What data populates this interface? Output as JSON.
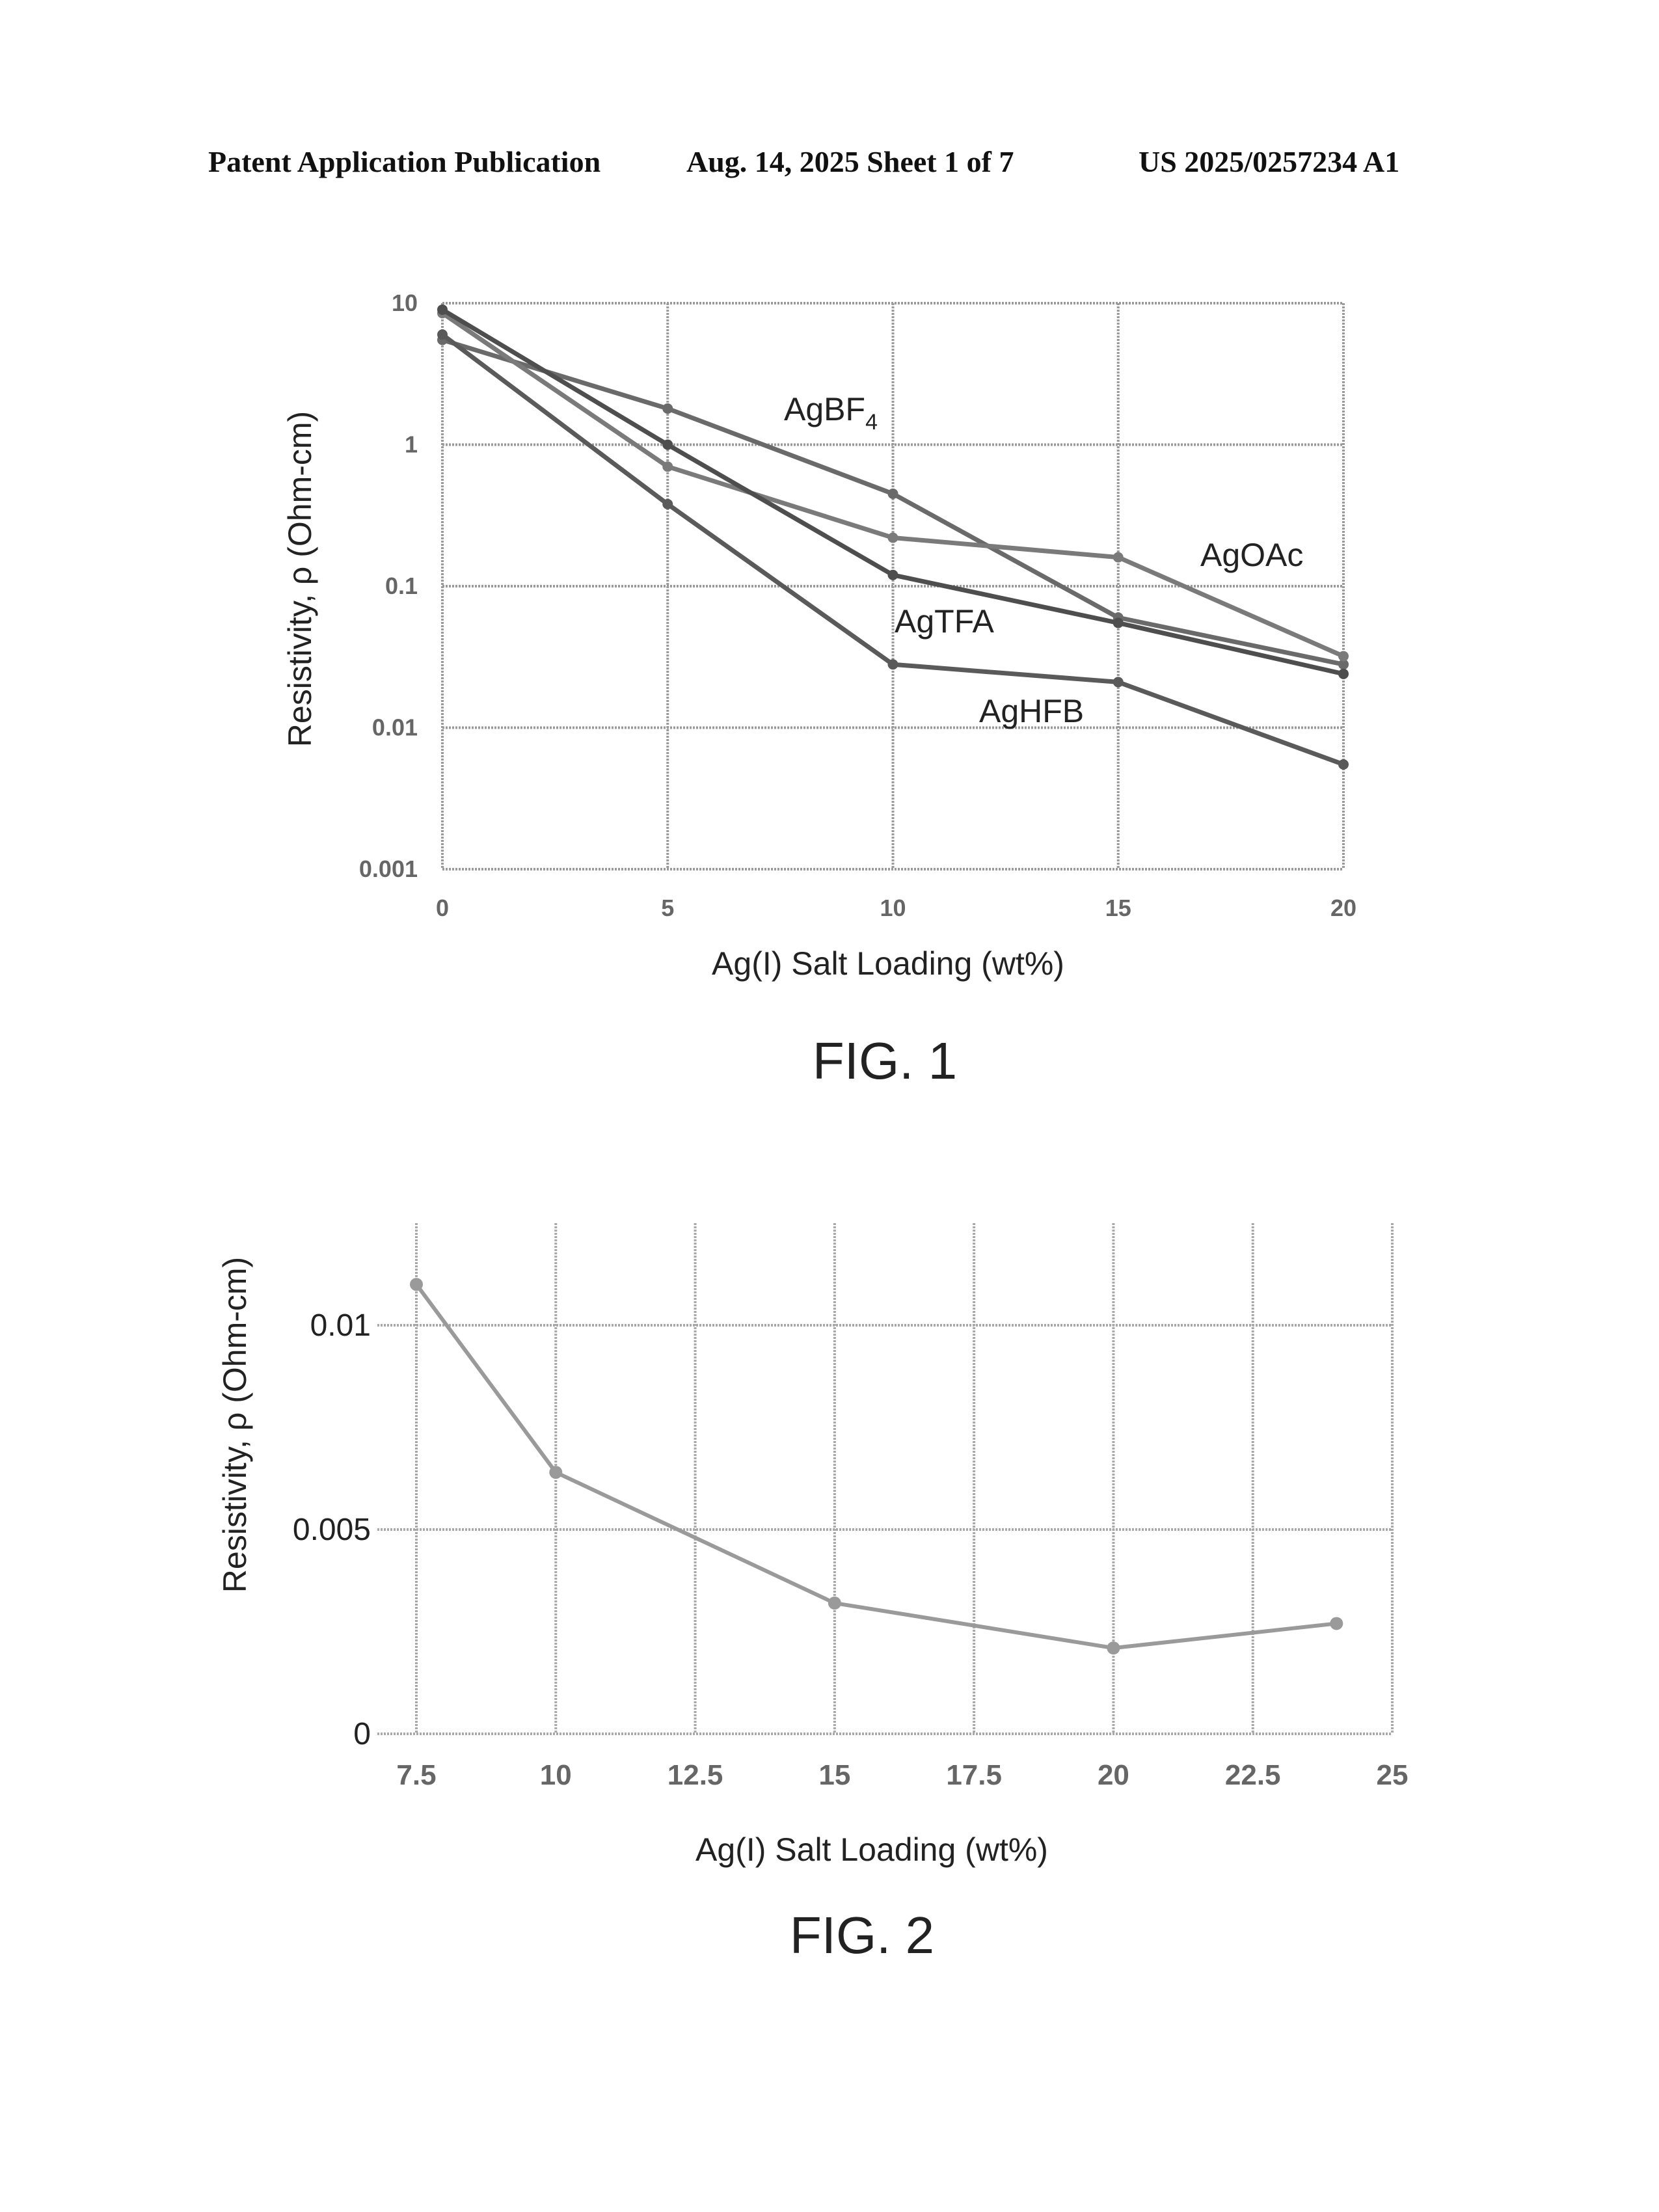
{
  "header": {
    "left": "Patent Application Publication",
    "middle": "Aug. 14, 2025  Sheet 1 of 7",
    "right": "US 2025/0257234 A1"
  },
  "figures": {
    "fig1_caption": "FIG. 1",
    "fig2_caption": "FIG. 2"
  },
  "chart_data": [
    {
      "type": "line",
      "xlabel": "Ag(I) Salt Loading (wt%)",
      "ylabel": "Resistivity, ρ (Ohm-cm)",
      "x_scale": "linear",
      "y_scale": "log",
      "xlim": [
        0,
        20
      ],
      "ylim": [
        0.001,
        10
      ],
      "grid": true,
      "x_ticks": [
        0,
        5,
        10,
        15,
        20
      ],
      "x_tick_labels": [
        "0",
        "5",
        "10",
        "15",
        "20"
      ],
      "y_ticks": [
        0.001,
        0.01,
        0.1,
        1,
        10
      ],
      "y_tick_labels": [
        "0.001",
        "0.01",
        "0.1",
        "1",
        "10"
      ],
      "series": [
        {
          "name": "AgBF4",
          "x": [
            0,
            5,
            10,
            15,
            20
          ],
          "y": [
            5.5,
            1.8,
            0.45,
            0.06,
            0.028
          ],
          "label": "AgBF",
          "label_sub": "4"
        },
        {
          "name": "AgOAc",
          "x": [
            0,
            5,
            10,
            15,
            20
          ],
          "y": [
            8.5,
            0.7,
            0.22,
            0.16,
            0.032
          ],
          "label": "AgOAc",
          "label_sub": ""
        },
        {
          "name": "AgTFA",
          "x": [
            0,
            5,
            10,
            15,
            20
          ],
          "y": [
            9.0,
            1.0,
            0.12,
            0.055,
            0.024
          ],
          "label": "AgTFA",
          "label_sub": ""
        },
        {
          "name": "AgHFB",
          "x": [
            0,
            5,
            10,
            15,
            20
          ],
          "y": [
            6.0,
            0.38,
            0.028,
            0.021,
            0.0055
          ],
          "label": "AgHFB",
          "label_sub": ""
        }
      ]
    },
    {
      "type": "line",
      "xlabel": "Ag(I) Salt Loading (wt%)",
      "ylabel": "Resistivity, ρ (Ohm-cm)",
      "x_scale": "linear",
      "y_scale": "linear",
      "xlim": [
        7.5,
        25
      ],
      "ylim": [
        0,
        0.0125
      ],
      "grid": true,
      "x_ticks": [
        7.5,
        10,
        12.5,
        15,
        17.5,
        20,
        22.5,
        25
      ],
      "x_tick_labels": [
        "7.5",
        "10",
        "12.5",
        "15",
        "17.5",
        "20",
        "22.5",
        "25"
      ],
      "y_ticks": [
        0,
        0.005,
        0.01
      ],
      "y_tick_labels": [
        "0",
        "0.005",
        "0.01"
      ],
      "series": [
        {
          "x": [
            7.5,
            10,
            15,
            20,
            24
          ],
          "y": [
            0.011,
            0.0064,
            0.0032,
            0.0021,
            0.0027
          ]
        }
      ]
    }
  ]
}
